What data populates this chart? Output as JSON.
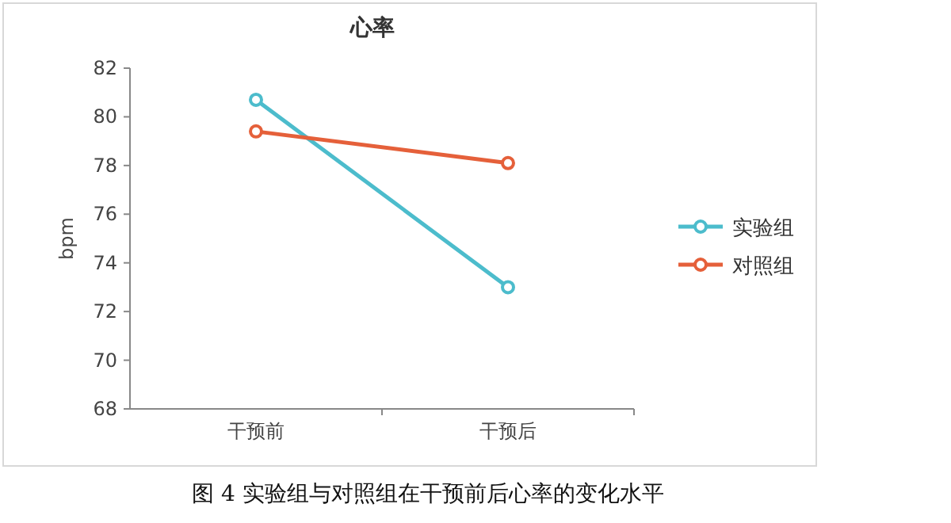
{
  "chart_data": {
    "type": "line",
    "title": "心率",
    "ylabel": "bpm",
    "categories": [
      "干预前",
      "干预后"
    ],
    "series": [
      {
        "name": "实验组",
        "color": "#4cbccc",
        "values": [
          80.7,
          73.0
        ]
      },
      {
        "name": "对照组",
        "color": "#e5603a",
        "values": [
          79.4,
          78.1
        ]
      }
    ],
    "ylim": [
      68,
      82
    ],
    "yticks": [
      68,
      70,
      72,
      74,
      76,
      78,
      80,
      82
    ],
    "legend": "right",
    "marker": "circle",
    "grid": false,
    "annotations": [
      "图 4 实验组与对照组在干预前后心率的变化水平"
    ]
  }
}
